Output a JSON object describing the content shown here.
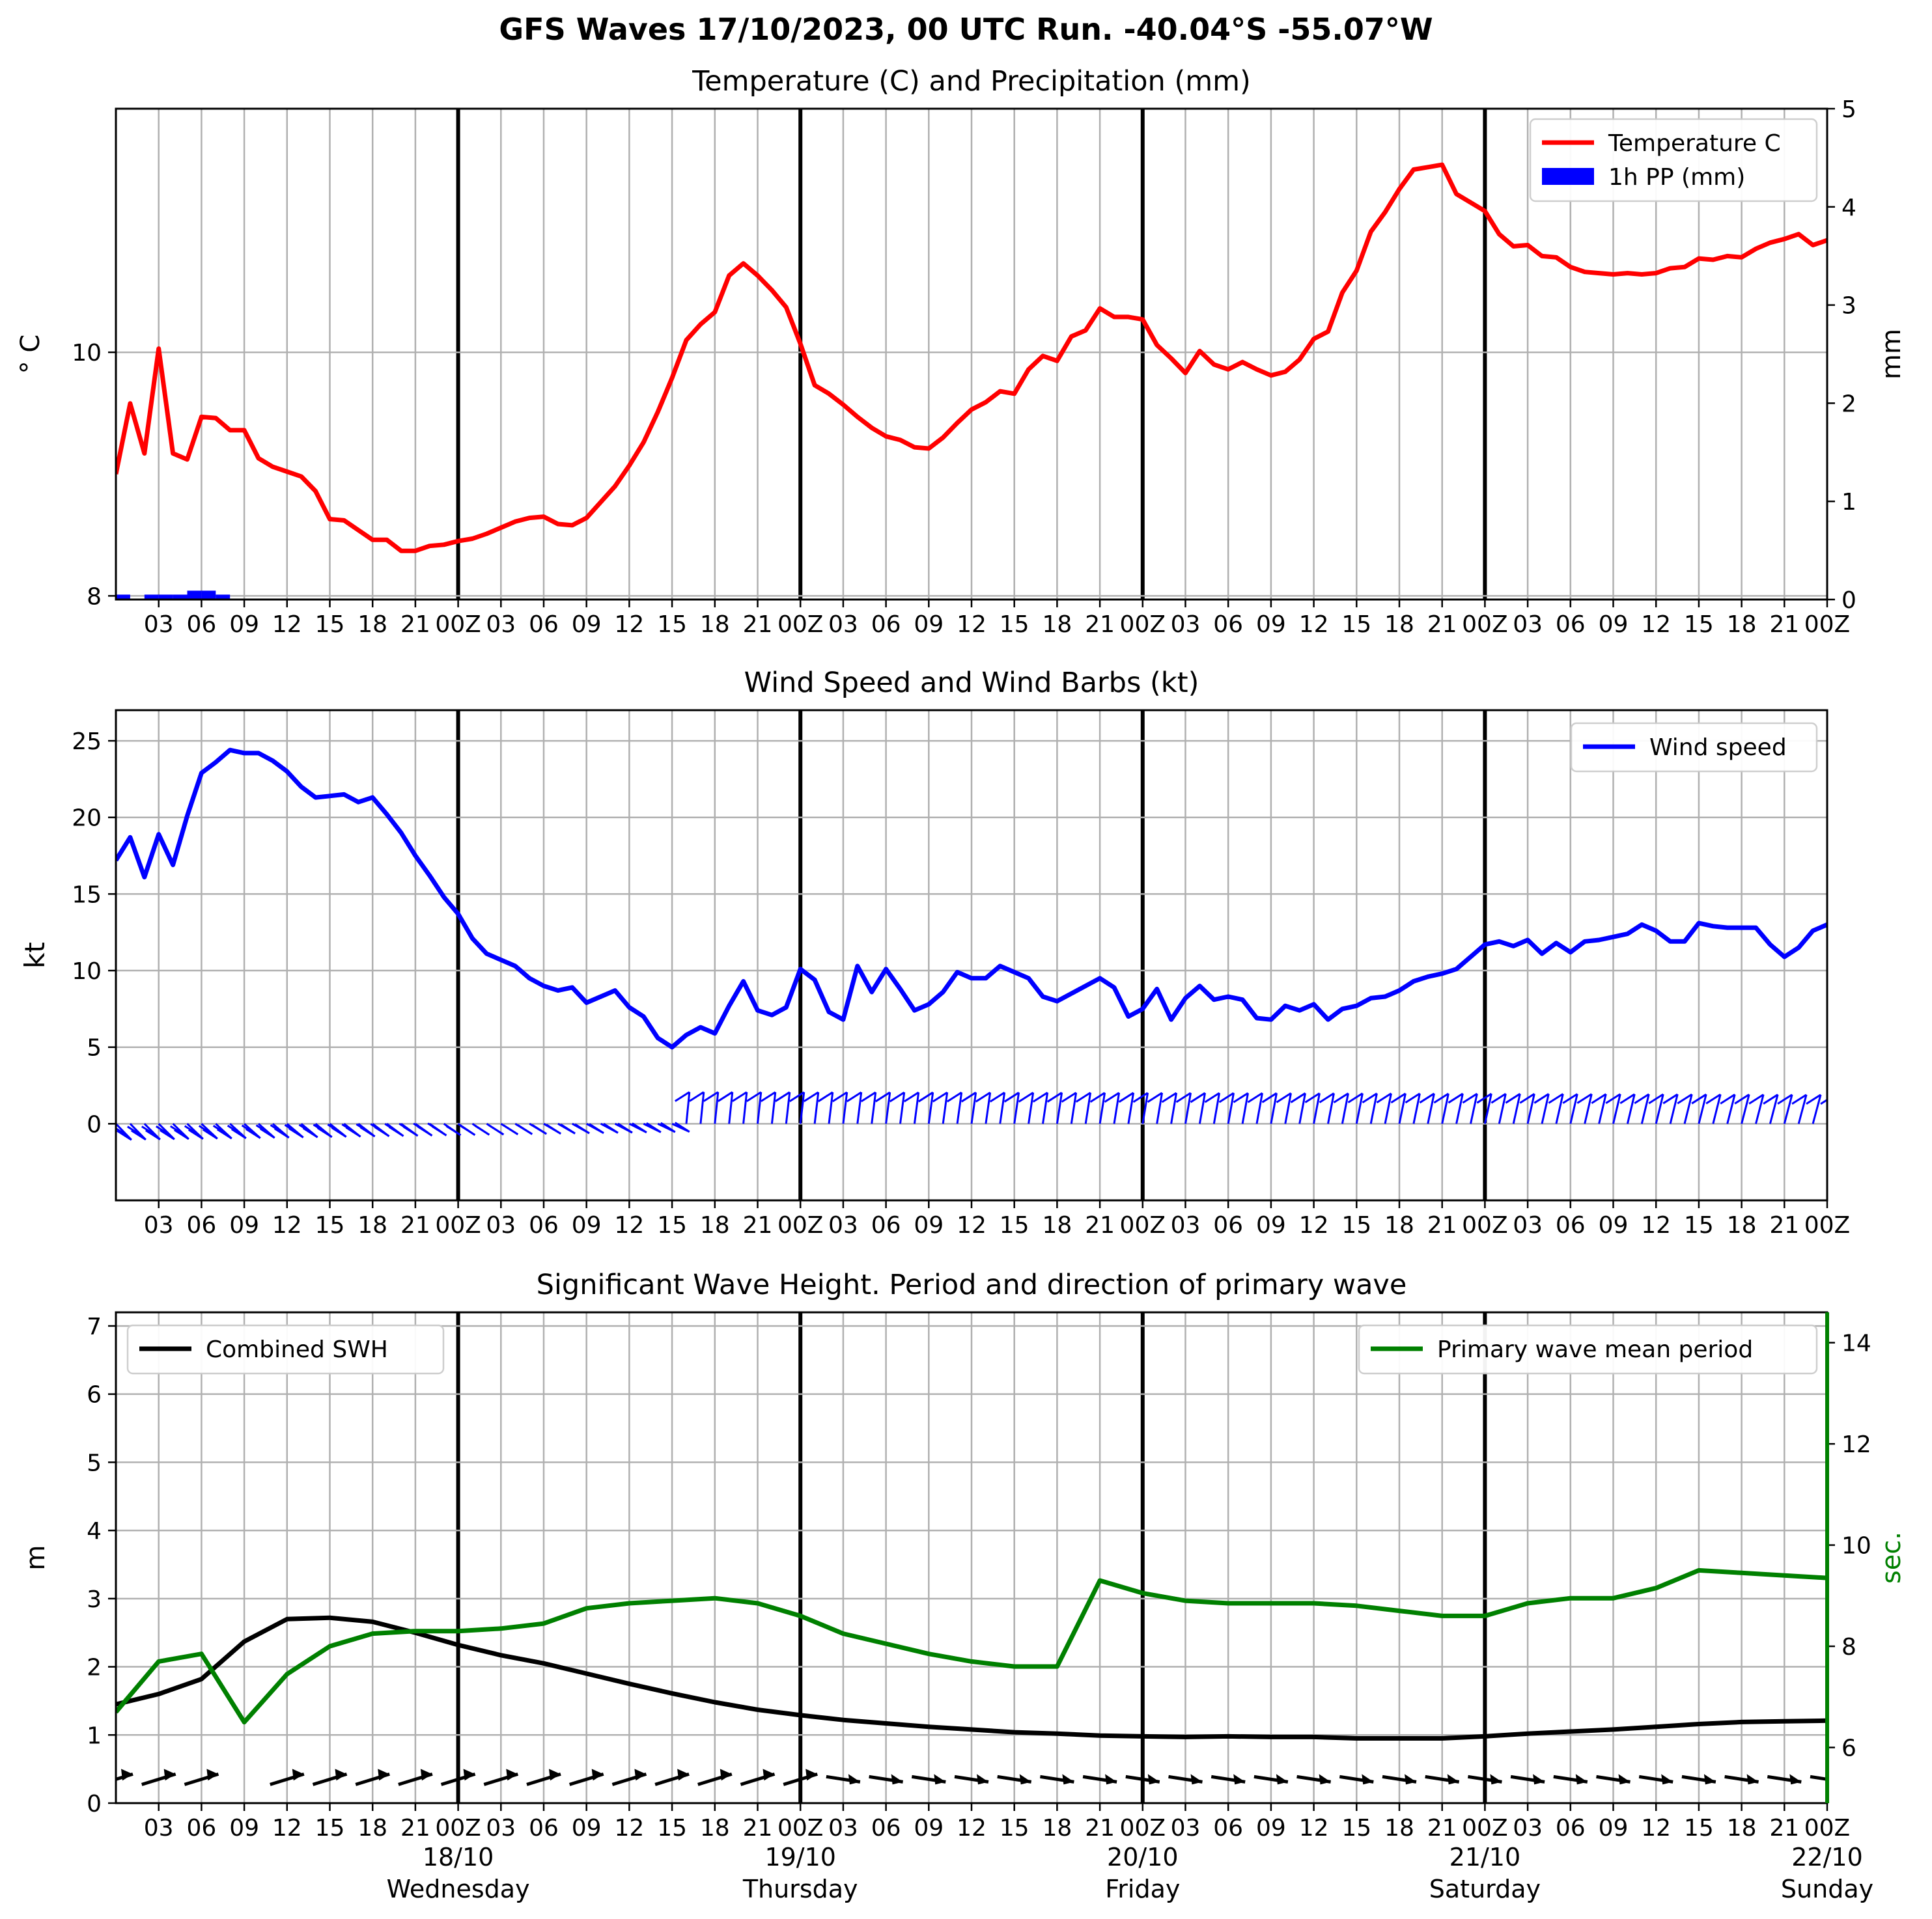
{
  "title": "GFS Waves 17/10/2023, 00 UTC Run. -40.04°S -55.07°W",
  "x_ticks": [
    "03",
    "06",
    "09",
    "12",
    "15",
    "18",
    "21",
    "00Z",
    "03",
    "06",
    "09",
    "12",
    "15",
    "18",
    "21",
    "00Z",
    "03",
    "06",
    "09",
    "12",
    "15",
    "18",
    "21",
    "00Z",
    "03",
    "06",
    "09",
    "12",
    "15",
    "18",
    "21",
    "00Z",
    "03",
    "06",
    "09",
    "12",
    "15",
    "18",
    "21",
    "00Z"
  ],
  "day_labels": [
    {
      "date": "18/10",
      "day": "Wednesday"
    },
    {
      "date": "19/10",
      "day": "Thursday"
    },
    {
      "date": "20/10",
      "day": "Friday"
    },
    {
      "date": "21/10",
      "day": "Saturday"
    },
    {
      "date": "22/10",
      "day": "Sunday"
    }
  ],
  "colors": {
    "temperature": "#ff0000",
    "precip": "#0000ff",
    "wind": "#0000ff",
    "swh": "#000000",
    "period": "#008000",
    "grid": "#b0b0b0"
  },
  "chart_data": [
    {
      "type": "line",
      "title": "Temperature (C) and Precipitation (mm)",
      "ylabel": "° C",
      "ylabel_right": "mm",
      "ylim": [
        7.97,
        12.0
      ],
      "ylim_right": [
        0,
        5
      ],
      "yticks": [
        8,
        10
      ],
      "yticks_right": [
        0,
        1,
        2,
        3,
        4,
        5
      ],
      "xlim_hours": [
        0,
        120
      ],
      "legend_placement": "top-right",
      "series": [
        {
          "name": "Temperature C",
          "x_hours": [
            0,
            1,
            2,
            3,
            4,
            5,
            6,
            7,
            8,
            9,
            10,
            11,
            12,
            13,
            14,
            15,
            16,
            17,
            18,
            19,
            20,
            21,
            22,
            23,
            24,
            25,
            26,
            27,
            28,
            29,
            30,
            31,
            32,
            33,
            34,
            35,
            36,
            37,
            38,
            39,
            40,
            41,
            42,
            43,
            44,
            45,
            46,
            47,
            48,
            49,
            50,
            51,
            52,
            53,
            54,
            55,
            56,
            57,
            58,
            59,
            60,
            61,
            62,
            63,
            64,
            65,
            66,
            67,
            68,
            69,
            70,
            71,
            72,
            73,
            74,
            75,
            76,
            77,
            78,
            79,
            80,
            81,
            82,
            83,
            84,
            85,
            86,
            87,
            88,
            89,
            90,
            91,
            92,
            93,
            94,
            95,
            96,
            97,
            98,
            99,
            100,
            101,
            102,
            103,
            104,
            105,
            106,
            107,
            108,
            109,
            110,
            111,
            112,
            113,
            114,
            115,
            116,
            117,
            118,
            119,
            120
          ],
          "values": [
            9.0,
            9.58,
            9.17,
            10.03,
            9.17,
            9.12,
            9.47,
            9.46,
            9.36,
            9.36,
            9.13,
            9.06,
            9.02,
            8.98,
            8.86,
            8.63,
            8.62,
            8.54,
            8.46,
            8.46,
            8.37,
            8.37,
            8.41,
            8.42,
            8.45,
            8.47,
            8.51,
            8.56,
            8.61,
            8.64,
            8.65,
            8.59,
            8.58,
            8.64,
            8.77,
            8.9,
            9.07,
            9.26,
            9.51,
            9.79,
            10.1,
            10.23,
            10.33,
            10.63,
            10.73,
            10.63,
            10.51,
            10.37,
            10.07,
            9.73,
            9.66,
            9.57,
            9.47,
            9.38,
            9.31,
            9.28,
            9.22,
            9.21,
            9.3,
            9.42,
            9.53,
            9.59,
            9.68,
            9.66,
            9.86,
            9.97,
            9.93,
            10.13,
            10.18,
            10.36,
            10.29,
            10.29,
            10.27,
            10.06,
            9.95,
            9.83,
            10.01,
            9.9,
            9.86,
            9.92,
            9.86,
            9.81,
            9.84,
            9.94,
            10.11,
            10.17,
            10.49,
            10.67,
            10.99,
            11.15,
            11.34,
            11.5,
            11.52,
            11.54,
            11.3,
            11.23,
            11.16,
            10.97,
            10.87,
            10.88,
            10.79,
            10.78,
            10.7,
            10.66,
            10.65,
            10.64,
            10.65,
            10.64,
            10.65,
            10.69,
            10.7,
            10.77,
            10.76,
            10.79,
            10.78,
            10.85,
            10.9,
            10.93,
            10.97,
            10.88,
            10.92
          ]
        },
        {
          "name": "1h PP (mm)",
          "type": "bar",
          "x_hours": [
            0,
            1,
            2,
            3,
            4,
            5,
            6,
            7
          ],
          "values": [
            0.05,
            0.0,
            0.05,
            0.05,
            0.05,
            0.09,
            0.09,
            0.05
          ],
          "axis": "right"
        }
      ]
    },
    {
      "type": "line",
      "title": "Wind Speed and Wind Barbs (kt)",
      "ylabel": "kt",
      "ylim": [
        -5,
        27
      ],
      "yticks": [
        0,
        5,
        10,
        15,
        20,
        25
      ],
      "xlim_hours": [
        0,
        120
      ],
      "legend_placement": "top-right",
      "barbs": "wind barbs drawn along y=0 at every hour",
      "series": [
        {
          "name": "Wind speed",
          "x_hours": [
            0,
            1,
            2,
            3,
            4,
            5,
            6,
            7,
            8,
            9,
            10,
            11,
            12,
            13,
            14,
            15,
            16,
            17,
            18,
            19,
            20,
            21,
            22,
            23,
            24,
            25,
            26,
            27,
            28,
            29,
            30,
            31,
            32,
            33,
            34,
            35,
            36,
            37,
            38,
            39,
            40,
            41,
            42,
            43,
            44,
            45,
            46,
            47,
            48,
            49,
            50,
            51,
            52,
            53,
            54,
            55,
            56,
            57,
            58,
            59,
            60,
            61,
            62,
            63,
            64,
            65,
            66,
            67,
            68,
            69,
            70,
            71,
            72,
            73,
            74,
            75,
            76,
            77,
            78,
            79,
            80,
            81,
            82,
            83,
            84,
            85,
            86,
            87,
            88,
            89,
            90,
            91,
            92,
            93,
            94,
            95,
            96,
            97,
            98,
            99,
            100,
            101,
            102,
            103,
            104,
            105,
            106,
            107,
            108,
            109,
            110,
            111,
            112,
            113,
            114,
            115,
            116,
            117,
            118,
            119,
            120
          ],
          "values": [
            17.2,
            18.7,
            16.1,
            18.9,
            16.9,
            20.1,
            22.9,
            23.6,
            24.4,
            24.2,
            24.2,
            23.7,
            23.0,
            22.0,
            21.3,
            21.4,
            21.5,
            21.0,
            21.3,
            20.2,
            19.0,
            17.5,
            16.2,
            14.8,
            13.7,
            12.1,
            11.1,
            10.7,
            10.3,
            9.5,
            9.0,
            8.7,
            8.9,
            7.9,
            8.3,
            8.7,
            7.6,
            7.0,
            5.6,
            5.0,
            5.8,
            6.3,
            5.9,
            7.7,
            9.3,
            7.4,
            7.1,
            7.6,
            10.1,
            9.4,
            7.3,
            6.8,
            10.3,
            8.6,
            10.1,
            8.8,
            7.4,
            7.8,
            8.6,
            9.9,
            9.5,
            9.5,
            10.3,
            9.9,
            9.5,
            8.3,
            8.0,
            8.5,
            9.0,
            9.5,
            8.9,
            7.0,
            7.5,
            8.8,
            6.8,
            8.2,
            9.0,
            8.1,
            8.3,
            8.1,
            6.9,
            6.8,
            7.7,
            7.4,
            7.8,
            6.8,
            7.5,
            7.7,
            8.2,
            8.3,
            8.7,
            9.3,
            9.6,
            9.8,
            10.1,
            10.9,
            11.7,
            11.9,
            11.6,
            12.0,
            11.1,
            11.8,
            11.2,
            11.9,
            12.0,
            12.2,
            12.4,
            13.0,
            12.6,
            11.9,
            11.9,
            13.1,
            12.9,
            12.8,
            12.8,
            12.8,
            11.7,
            10.9,
            11.5,
            12.6,
            13.0
          ]
        }
      ]
    },
    {
      "type": "line",
      "title": "Significant Wave Height. Period and direction of primary wave",
      "ylabel": "m",
      "ylabel_right": "sec.",
      "ylim": [
        0,
        7.2
      ],
      "ylim_right": [
        4.9,
        14.6
      ],
      "yticks": [
        0,
        1,
        2,
        3,
        4,
        5,
        6,
        7
      ],
      "yticks_right": [
        6,
        8,
        10,
        12,
        14
      ],
      "xlim_hours": [
        0,
        120
      ],
      "series": [
        {
          "name": "Combined SWH",
          "legend_placement": "top-left",
          "x_hours": [
            0,
            3,
            6,
            9,
            12,
            15,
            18,
            21,
            24,
            27,
            30,
            33,
            36,
            39,
            42,
            45,
            48,
            51,
            54,
            57,
            60,
            63,
            66,
            69,
            72,
            75,
            78,
            81,
            84,
            87,
            90,
            93,
            96,
            99,
            102,
            105,
            108,
            111,
            114,
            117,
            120
          ],
          "values": [
            1.45,
            1.6,
            1.82,
            2.37,
            2.7,
            2.72,
            2.66,
            2.5,
            2.32,
            2.17,
            2.05,
            1.9,
            1.75,
            1.61,
            1.48,
            1.37,
            1.29,
            1.22,
            1.17,
            1.12,
            1.08,
            1.04,
            1.02,
            0.99,
            0.98,
            0.97,
            0.98,
            0.97,
            0.97,
            0.95,
            0.95,
            0.95,
            0.98,
            1.02,
            1.05,
            1.08,
            1.12,
            1.16,
            1.19,
            1.2,
            1.21
          ]
        },
        {
          "name": "Primary wave mean period",
          "legend_placement": "top-right",
          "axis": "right",
          "x_hours": [
            0,
            3,
            6,
            9,
            12,
            15,
            18,
            21,
            24,
            27,
            30,
            33,
            36,
            39,
            42,
            45,
            48,
            51,
            54,
            57,
            60,
            63,
            66,
            69,
            72,
            75,
            78,
            81,
            84,
            87,
            90,
            93,
            96,
            99,
            102,
            105,
            108,
            111,
            114,
            117,
            120
          ],
          "values": [
            6.7,
            7.7,
            7.85,
            6.5,
            7.45,
            8.0,
            8.25,
            8.3,
            8.3,
            8.35,
            8.45,
            8.75,
            8.85,
            8.9,
            8.95,
            8.85,
            8.6,
            8.25,
            8.05,
            7.85,
            7.7,
            7.6,
            7.6,
            9.3,
            9.05,
            8.9,
            8.85,
            8.85,
            8.85,
            8.8,
            8.7,
            8.6,
            8.6,
            8.85,
            8.95,
            8.95,
            9.15,
            9.5,
            9.45,
            9.4,
            9.35
          ]
        }
      ]
    }
  ]
}
